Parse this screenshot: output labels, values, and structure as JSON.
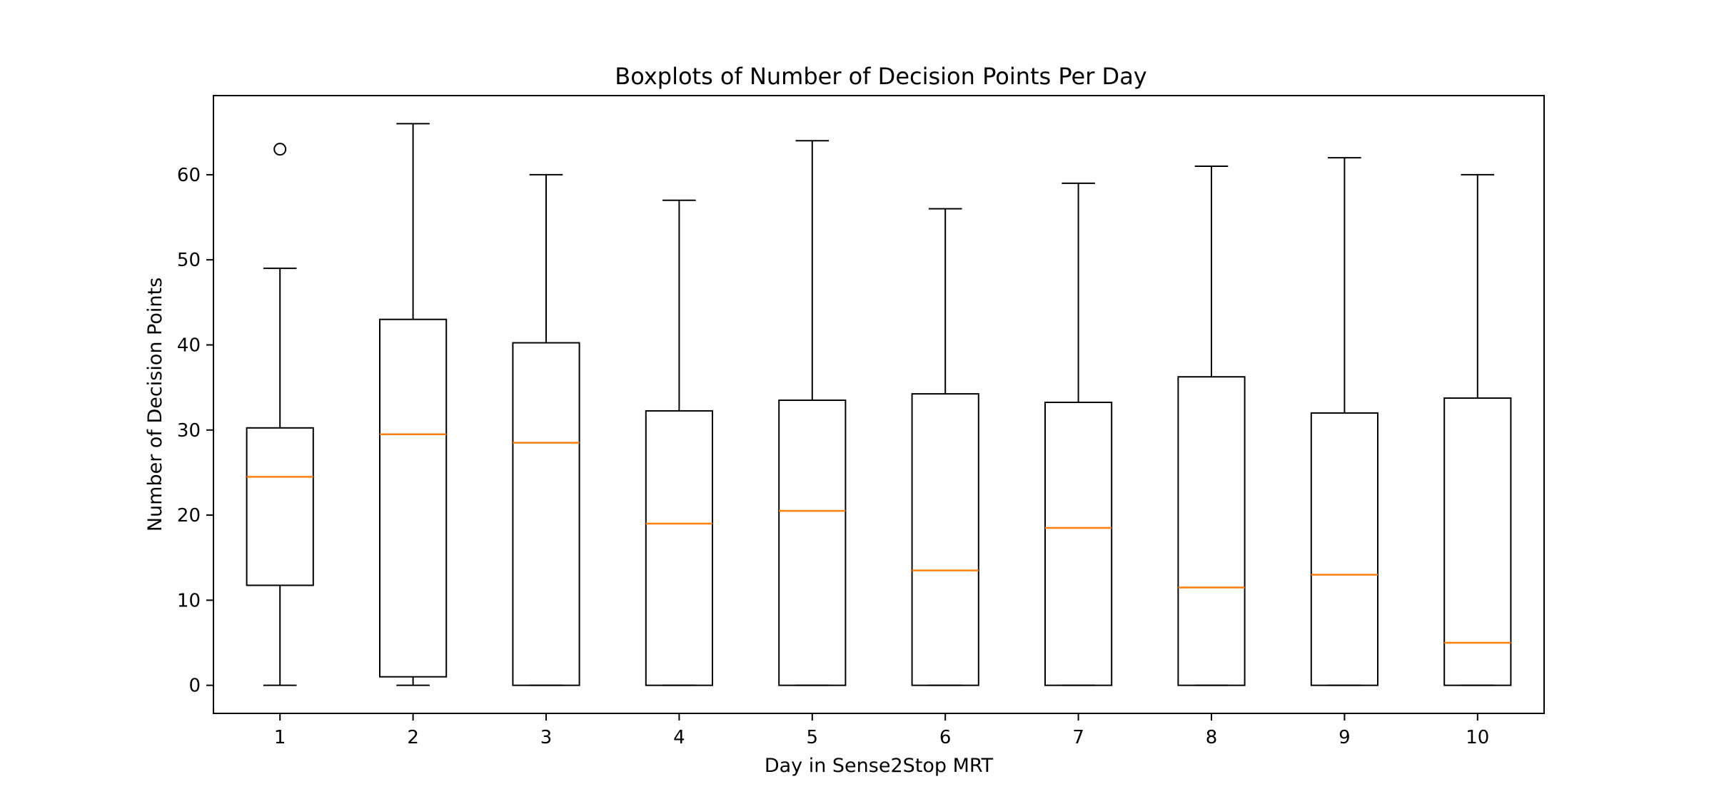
{
  "chart_data": {
    "type": "boxplot",
    "title": "Boxplots of Number of Decision Points Per Day",
    "xlabel": "Day in Sense2Stop MRT",
    "ylabel": "Number of Decision Points",
    "categories": [
      "1",
      "2",
      "3",
      "4",
      "5",
      "6",
      "7",
      "8",
      "9",
      "10"
    ],
    "y_ticks": [
      0,
      10,
      20,
      30,
      40,
      50,
      60
    ],
    "y_tick_labels": [
      "0",
      "10",
      "20",
      "30",
      "40",
      "50",
      "60"
    ],
    "ylim": [
      -3.3,
      69.3
    ],
    "xlim": [
      0.5,
      10.5
    ],
    "grid": false,
    "legend": "none",
    "box_color": "#000000",
    "median_color": "#ff7f0e",
    "boxes": [
      {
        "day": "1",
        "whisker_low": 0,
        "q1": 11.75,
        "median": 24.5,
        "q3": 30.25,
        "whisker_high": 49,
        "fliers": [
          63
        ]
      },
      {
        "day": "2",
        "whisker_low": 0,
        "q1": 1,
        "median": 29.5,
        "q3": 43,
        "whisker_high": 66,
        "fliers": []
      },
      {
        "day": "3",
        "whisker_low": 0,
        "q1": 0,
        "median": 28.5,
        "q3": 40.25,
        "whisker_high": 60,
        "fliers": []
      },
      {
        "day": "4",
        "whisker_low": 0,
        "q1": 0,
        "median": 19,
        "q3": 32.25,
        "whisker_high": 57,
        "fliers": []
      },
      {
        "day": "5",
        "whisker_low": 0,
        "q1": 0,
        "median": 20.5,
        "q3": 33.5,
        "whisker_high": 64,
        "fliers": []
      },
      {
        "day": "6",
        "whisker_low": 0,
        "q1": 0,
        "median": 13.5,
        "q3": 34.25,
        "whisker_high": 56,
        "fliers": []
      },
      {
        "day": "7",
        "whisker_low": 0,
        "q1": 0,
        "median": 18.5,
        "q3": 33.25,
        "whisker_high": 59,
        "fliers": []
      },
      {
        "day": "8",
        "whisker_low": 0,
        "q1": 0,
        "median": 11.5,
        "q3": 36.25,
        "whisker_high": 61,
        "fliers": []
      },
      {
        "day": "9",
        "whisker_low": 0,
        "q1": 0,
        "median": 13,
        "q3": 32,
        "whisker_high": 62,
        "fliers": []
      },
      {
        "day": "10",
        "whisker_low": 0,
        "q1": 0,
        "median": 5,
        "q3": 33.75,
        "whisker_high": 60,
        "fliers": []
      }
    ]
  }
}
